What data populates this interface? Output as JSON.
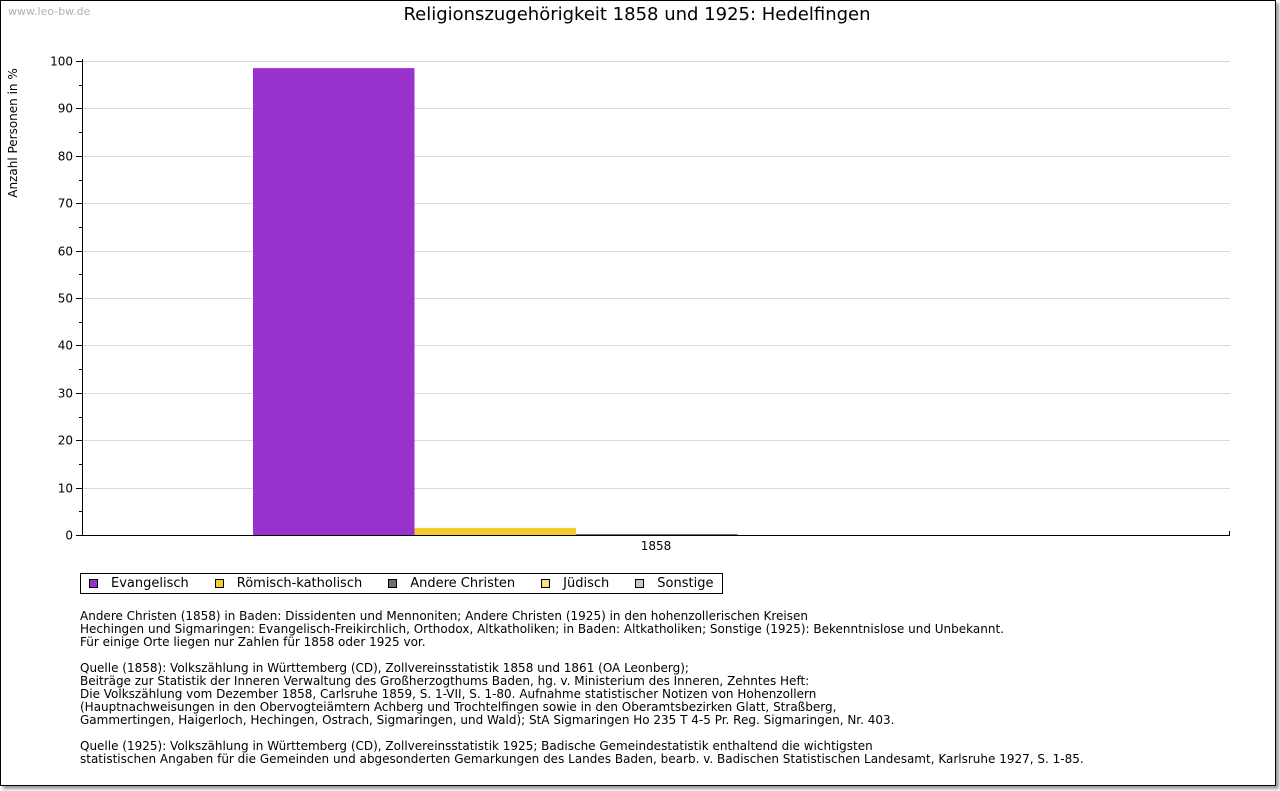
{
  "watermark": "www.leo-bw.de",
  "chart_data": {
    "type": "bar",
    "title": "Religionszugehörigkeit 1858 und 1925: Hedelfingen",
    "xlabel": "",
    "ylabel": "Anzahl Personen in %",
    "ylim": [
      0,
      100
    ],
    "yticks": [
      0,
      10,
      20,
      30,
      40,
      50,
      60,
      70,
      80,
      90,
      100
    ],
    "categories": [
      "1858"
    ],
    "series": [
      {
        "name": "Evangelisch",
        "color": "#9932cc",
        "values": [
          98.5
        ]
      },
      {
        "name": "Römisch-katholisch",
        "color": "#f5cc2e",
        "values": [
          1.5
        ]
      },
      {
        "name": "Andere Christen",
        "color": "#6e6e6e",
        "values": [
          0.1
        ]
      },
      {
        "name": "Jüdisch",
        "color": "#f8df7a",
        "values": [
          0
        ]
      },
      {
        "name": "Sonstige",
        "color": "#c8c8c8",
        "values": [
          0
        ]
      }
    ],
    "grid": true,
    "legend": "bottom-left"
  },
  "notes": [
    [
      "Andere Christen (1858) in Baden: Dissidenten und Mennoniten; Andere Christen (1925) in den hohenzollerischen Kreisen",
      "Hechingen und Sigmaringen: Evangelisch-Freikirchlich, Orthodox, Altkatholiken; in Baden: Altkatholiken; Sonstige (1925): Bekenntnislose und Unbekannt.",
      "Für einige Orte liegen nur Zahlen für 1858 oder 1925 vor."
    ],
    [
      "Quelle (1858): Volkszählung in Württemberg (CD), Zollvereinsstatistik 1858 und 1861 (OA Leonberg);",
      "Beiträge zur Statistik der Inneren Verwaltung des Großherzogthums Baden, hg. v. Ministerium des Inneren, Zehntes Heft:",
      "Die Volkszählung vom Dezember 1858, Carlsruhe 1859, S. 1-VII, S. 1-80. Aufnahme statistischer Notizen von Hohenzollern",
      "(Hauptnachweisungen in den Obervogteiämtern Achberg und Trochtelfingen sowie in den Oberamtsbezirken Glatt, Straßberg,",
      "Gammertingen, Haigerloch, Hechingen, Ostrach, Sigmaringen, und Wald); StA Sigmaringen Ho 235 T 4-5 Pr. Reg. Sigmaringen, Nr. 403."
    ],
    [
      "Quelle (1925): Volkszählung in Württemberg (CD), Zollvereinsstatistik 1925; Badische Gemeindestatistik enthaltend die wichtigsten",
      "statistischen Angaben für die Gemeinden und abgesonderten Gemarkungen des Landes Baden, bearb. v. Badischen Statistischen Landesamt, Karlsruhe 1927, S. 1-85."
    ]
  ]
}
